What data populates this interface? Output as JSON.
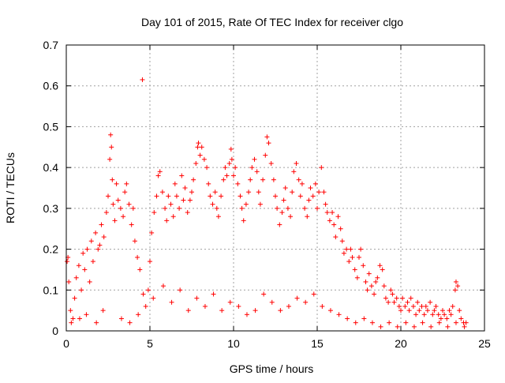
{
  "chart_data": {
    "type": "scatter",
    "title": "Day 101 of 2015, Rate Of TEC Index for receiver clgo",
    "xlabel": "GPS time / hours",
    "ylabel": "ROTI / TECUs",
    "xlim": [
      0,
      25
    ],
    "ylim": [
      0,
      0.7
    ],
    "x_ticks": [
      0,
      5,
      10,
      15,
      20,
      25
    ],
    "y_ticks": [
      0,
      0.1,
      0.2,
      0.3,
      0.4,
      0.5,
      0.6,
      0.7
    ],
    "x_tick_labels": [
      "0",
      "5",
      "10",
      "15",
      "20",
      "25"
    ],
    "y_tick_labels": [
      "0",
      "0.1",
      "0.2",
      "0.3",
      "0.4",
      "0.5",
      "0.6",
      "0.7"
    ],
    "grid": true,
    "marker": "plus",
    "color": "#ff0000",
    "points": [
      [
        0.05,
        0.17
      ],
      [
        0.1,
        0.18
      ],
      [
        0.15,
        0.12
      ],
      [
        0.25,
        0.05
      ],
      [
        0.4,
        0.03
      ],
      [
        0.5,
        0.08
      ],
      [
        0.6,
        0.13
      ],
      [
        0.75,
        0.16
      ],
      [
        0.9,
        0.1
      ],
      [
        1.0,
        0.19
      ],
      [
        1.1,
        0.15
      ],
      [
        1.25,
        0.2
      ],
      [
        1.4,
        0.12
      ],
      [
        1.5,
        0.22
      ],
      [
        1.6,
        0.17
      ],
      [
        1.75,
        0.24
      ],
      [
        1.9,
        0.2
      ],
      [
        2.0,
        0.21
      ],
      [
        2.1,
        0.26
      ],
      [
        2.25,
        0.23
      ],
      [
        2.4,
        0.29
      ],
      [
        2.5,
        0.33
      ],
      [
        2.6,
        0.42
      ],
      [
        2.65,
        0.48
      ],
      [
        2.7,
        0.45
      ],
      [
        2.75,
        0.37
      ],
      [
        2.8,
        0.31
      ],
      [
        2.9,
        0.27
      ],
      [
        3.0,
        0.36
      ],
      [
        3.1,
        0.32
      ],
      [
        3.25,
        0.3
      ],
      [
        3.4,
        0.28
      ],
      [
        3.5,
        0.34
      ],
      [
        3.6,
        0.36
      ],
      [
        3.75,
        0.31
      ],
      [
        3.9,
        0.26
      ],
      [
        4.0,
        0.3
      ],
      [
        4.1,
        0.22
      ],
      [
        4.25,
        0.18
      ],
      [
        4.4,
        0.15
      ],
      [
        4.55,
        0.615
      ],
      [
        4.6,
        0.09
      ],
      [
        4.75,
        0.06
      ],
      [
        4.9,
        0.1
      ],
      [
        5.0,
        0.17
      ],
      [
        5.1,
        0.24
      ],
      [
        5.25,
        0.29
      ],
      [
        5.4,
        0.33
      ],
      [
        5.5,
        0.38
      ],
      [
        5.6,
        0.39
      ],
      [
        5.75,
        0.34
      ],
      [
        5.9,
        0.3
      ],
      [
        6.0,
        0.27
      ],
      [
        6.1,
        0.33
      ],
      [
        6.25,
        0.31
      ],
      [
        6.4,
        0.28
      ],
      [
        6.5,
        0.36
      ],
      [
        6.6,
        0.33
      ],
      [
        6.75,
        0.3
      ],
      [
        6.9,
        0.38
      ],
      [
        7.0,
        0.32
      ],
      [
        7.1,
        0.35
      ],
      [
        7.25,
        0.29
      ],
      [
        7.4,
        0.32
      ],
      [
        7.5,
        0.34
      ],
      [
        7.6,
        0.37
      ],
      [
        7.75,
        0.41
      ],
      [
        7.85,
        0.45
      ],
      [
        7.9,
        0.46
      ],
      [
        8.0,
        0.43
      ],
      [
        8.1,
        0.45
      ],
      [
        8.25,
        0.42
      ],
      [
        8.4,
        0.4
      ],
      [
        8.5,
        0.36
      ],
      [
        8.6,
        0.33
      ],
      [
        8.75,
        0.31
      ],
      [
        8.9,
        0.34
      ],
      [
        9.0,
        0.3
      ],
      [
        9.1,
        0.28
      ],
      [
        9.25,
        0.33
      ],
      [
        9.4,
        0.37
      ],
      [
        9.5,
        0.4
      ],
      [
        9.6,
        0.38
      ],
      [
        9.75,
        0.41
      ],
      [
        9.85,
        0.445
      ],
      [
        9.9,
        0.42
      ],
      [
        10.0,
        0.38
      ],
      [
        10.1,
        0.4
      ],
      [
        10.25,
        0.36
      ],
      [
        10.4,
        0.33
      ],
      [
        10.5,
        0.3
      ],
      [
        10.6,
        0.27
      ],
      [
        10.75,
        0.31
      ],
      [
        10.9,
        0.34
      ],
      [
        11.0,
        0.37
      ],
      [
        11.1,
        0.4
      ],
      [
        11.25,
        0.42
      ],
      [
        11.4,
        0.39
      ],
      [
        11.5,
        0.34
      ],
      [
        11.6,
        0.31
      ],
      [
        11.75,
        0.37
      ],
      [
        11.9,
        0.43
      ],
      [
        12.0,
        0.475
      ],
      [
        12.1,
        0.46
      ],
      [
        12.25,
        0.41
      ],
      [
        12.4,
        0.37
      ],
      [
        12.5,
        0.33
      ],
      [
        12.6,
        0.3
      ],
      [
        12.75,
        0.26
      ],
      [
        12.9,
        0.29
      ],
      [
        13.0,
        0.32
      ],
      [
        13.1,
        0.35
      ],
      [
        13.25,
        0.3
      ],
      [
        13.4,
        0.28
      ],
      [
        13.5,
        0.34
      ],
      [
        13.6,
        0.39
      ],
      [
        13.75,
        0.41
      ],
      [
        13.9,
        0.37
      ],
      [
        14.0,
        0.33
      ],
      [
        14.1,
        0.36
      ],
      [
        14.25,
        0.3
      ],
      [
        14.4,
        0.28
      ],
      [
        14.5,
        0.32
      ],
      [
        14.6,
        0.35
      ],
      [
        14.75,
        0.33
      ],
      [
        14.9,
        0.36
      ],
      [
        15.0,
        0.3
      ],
      [
        15.1,
        0.34
      ],
      [
        15.25,
        0.4
      ],
      [
        15.4,
        0.34
      ],
      [
        15.5,
        0.31
      ],
      [
        15.6,
        0.29
      ],
      [
        15.75,
        0.27
      ],
      [
        15.9,
        0.29
      ],
      [
        16.0,
        0.26
      ],
      [
        16.1,
        0.23
      ],
      [
        16.25,
        0.28
      ],
      [
        16.4,
        0.25
      ],
      [
        16.5,
        0.22
      ],
      [
        16.6,
        0.19
      ],
      [
        16.75,
        0.2
      ],
      [
        16.9,
        0.17
      ],
      [
        17.0,
        0.2
      ],
      [
        17.1,
        0.18
      ],
      [
        17.25,
        0.15
      ],
      [
        17.4,
        0.13
      ],
      [
        17.5,
        0.18
      ],
      [
        17.6,
        0.2
      ],
      [
        17.75,
        0.16
      ],
      [
        17.9,
        0.12
      ],
      [
        18.0,
        0.1
      ],
      [
        18.1,
        0.14
      ],
      [
        18.25,
        0.11
      ],
      [
        18.4,
        0.09
      ],
      [
        18.5,
        0.12
      ],
      [
        18.6,
        0.13
      ],
      [
        18.75,
        0.16
      ],
      [
        18.9,
        0.15
      ],
      [
        19.0,
        0.11
      ],
      [
        19.1,
        0.08
      ],
      [
        19.25,
        0.07
      ],
      [
        19.4,
        0.1
      ],
      [
        19.5,
        0.09
      ],
      [
        19.6,
        0.07
      ],
      [
        19.75,
        0.08
      ],
      [
        19.9,
        0.06
      ],
      [
        20.0,
        0.05
      ],
      [
        20.1,
        0.08
      ],
      [
        20.25,
        0.06
      ],
      [
        20.4,
        0.07
      ],
      [
        20.5,
        0.05
      ],
      [
        20.6,
        0.08
      ],
      [
        20.75,
        0.06
      ],
      [
        20.9,
        0.04
      ],
      [
        21.0,
        0.07
      ],
      [
        21.1,
        0.05
      ],
      [
        21.25,
        0.06
      ],
      [
        21.4,
        0.04
      ],
      [
        21.5,
        0.06
      ],
      [
        21.6,
        0.05
      ],
      [
        21.75,
        0.07
      ],
      [
        21.9,
        0.04
      ],
      [
        22.0,
        0.05
      ],
      [
        22.1,
        0.06
      ],
      [
        22.25,
        0.04
      ],
      [
        22.4,
        0.03
      ],
      [
        22.5,
        0.05
      ],
      [
        22.6,
        0.04
      ],
      [
        22.75,
        0.03
      ],
      [
        22.9,
        0.05
      ],
      [
        23.0,
        0.04
      ],
      [
        23.1,
        0.06
      ],
      [
        23.25,
        0.1
      ],
      [
        23.3,
        0.12
      ],
      [
        23.4,
        0.11
      ],
      [
        23.5,
        0.05
      ],
      [
        23.6,
        0.03
      ],
      [
        23.75,
        0.02
      ],
      [
        23.9,
        0.02
      ],
      [
        0.3,
        0.02
      ],
      [
        0.8,
        0.03
      ],
      [
        1.2,
        0.04
      ],
      [
        1.8,
        0.02
      ],
      [
        2.2,
        0.05
      ],
      [
        3.3,
        0.03
      ],
      [
        3.8,
        0.02
      ],
      [
        4.3,
        0.04
      ],
      [
        5.2,
        0.08
      ],
      [
        5.8,
        0.11
      ],
      [
        6.3,
        0.07
      ],
      [
        6.8,
        0.1
      ],
      [
        7.3,
        0.05
      ],
      [
        7.8,
        0.08
      ],
      [
        8.3,
        0.06
      ],
      [
        8.8,
        0.09
      ],
      [
        9.3,
        0.05
      ],
      [
        9.8,
        0.07
      ],
      [
        10.3,
        0.06
      ],
      [
        10.8,
        0.04
      ],
      [
        11.3,
        0.05
      ],
      [
        11.8,
        0.09
      ],
      [
        12.3,
        0.07
      ],
      [
        12.8,
        0.05
      ],
      [
        13.3,
        0.06
      ],
      [
        13.8,
        0.08
      ],
      [
        14.3,
        0.07
      ],
      [
        14.8,
        0.09
      ],
      [
        15.3,
        0.06
      ],
      [
        15.8,
        0.05
      ],
      [
        16.3,
        0.04
      ],
      [
        16.8,
        0.03
      ],
      [
        17.3,
        0.02
      ],
      [
        17.8,
        0.03
      ],
      [
        18.3,
        0.02
      ],
      [
        18.8,
        0.01
      ],
      [
        19.3,
        0.02
      ],
      [
        19.8,
        0.01
      ],
      [
        20.3,
        0.02
      ],
      [
        20.8,
        0.01
      ],
      [
        21.3,
        0.02
      ],
      [
        21.8,
        0.01
      ],
      [
        22.3,
        0.02
      ],
      [
        22.8,
        0.01
      ],
      [
        23.3,
        0.02
      ],
      [
        23.8,
        0.01
      ]
    ]
  }
}
